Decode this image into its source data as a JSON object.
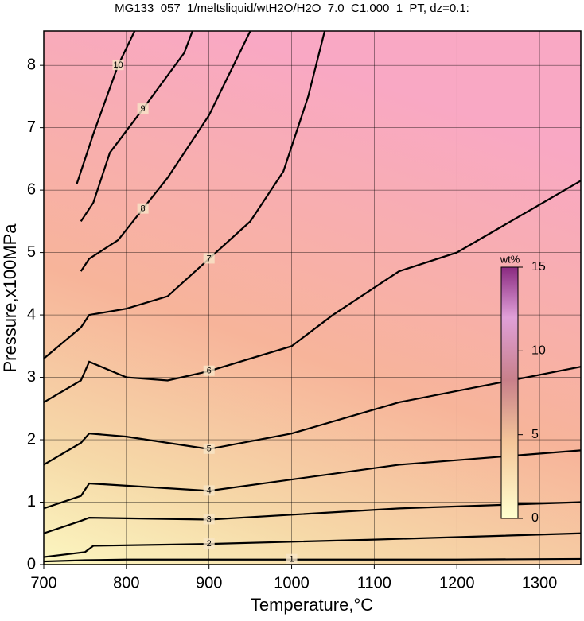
{
  "chart_data": {
    "type": "contour",
    "title": "MG133_057_1/meltsliquid/wtH2O/H2O_7.0_C1.000_1_PT, dz=0.1:",
    "x_label": "Temperature,°C",
    "y_label": "Pressure,x100MPa",
    "xlim": [
      700,
      1350
    ],
    "ylim": [
      0,
      8.55
    ],
    "xticks": [
      700,
      800,
      900,
      1000,
      1100,
      1200,
      1300
    ],
    "yticks": [
      0,
      1,
      2,
      3,
      4,
      5,
      6,
      7,
      8
    ],
    "grid": true,
    "contours": [
      {
        "level": 1,
        "x": [
          700,
          750,
          800,
          900,
          1000,
          1100,
          1200,
          1350
        ],
        "y": [
          0.05,
          0.07,
          0.08,
          0.08,
          0.08,
          0.08,
          0.08,
          0.09
        ]
      },
      {
        "level": 2,
        "x": [
          700,
          750,
          760,
          900,
          1100,
          1350
        ],
        "y": [
          0.12,
          0.2,
          0.3,
          0.33,
          0.4,
          0.5
        ]
      },
      {
        "level": 3,
        "x": [
          700,
          745,
          755,
          900,
          1130,
          1350
        ],
        "y": [
          0.5,
          0.7,
          0.75,
          0.72,
          0.9,
          1.0
        ]
      },
      {
        "level": 4,
        "x": [
          700,
          745,
          755,
          900,
          1130,
          1350
        ],
        "y": [
          0.9,
          1.1,
          1.3,
          1.18,
          1.6,
          1.83
        ]
      },
      {
        "level": 5,
        "x": [
          700,
          745,
          755,
          800,
          900,
          1000,
          1130,
          1350
        ],
        "y": [
          1.6,
          1.95,
          2.1,
          2.05,
          1.85,
          2.1,
          2.6,
          3.17
        ]
      },
      {
        "level": 6,
        "x": [
          700,
          745,
          755,
          800,
          850,
          900,
          1000,
          1050,
          1130,
          1200,
          1350
        ],
        "y": [
          2.6,
          2.95,
          3.25,
          3.0,
          2.95,
          3.1,
          3.5,
          4.0,
          4.7,
          5.0,
          6.15
        ]
      },
      {
        "level": 7,
        "x": [
          700,
          745,
          755,
          800,
          850,
          900,
          950,
          990,
          1020,
          1040
        ],
        "y": [
          3.3,
          3.8,
          4.0,
          4.1,
          4.3,
          4.9,
          5.5,
          6.3,
          7.5,
          8.55
        ]
      },
      {
        "level": 8,
        "x": [
          745,
          755,
          790,
          820,
          850,
          900,
          950
        ],
        "y": [
          4.7,
          4.9,
          5.2,
          5.7,
          6.2,
          7.2,
          8.55
        ]
      },
      {
        "level": 9,
        "x": [
          745,
          760,
          780,
          820,
          870,
          880
        ],
        "y": [
          5.5,
          5.8,
          6.6,
          7.3,
          8.2,
          8.55
        ]
      },
      {
        "level": 10,
        "x": [
          740,
          760,
          790,
          810
        ],
        "y": [
          6.1,
          6.9,
          8.0,
          8.55
        ]
      }
    ],
    "colorbar": {
      "label": "wt%",
      "lim": [
        0,
        15
      ],
      "ticks": [
        0,
        5,
        10,
        15
      ]
    }
  }
}
